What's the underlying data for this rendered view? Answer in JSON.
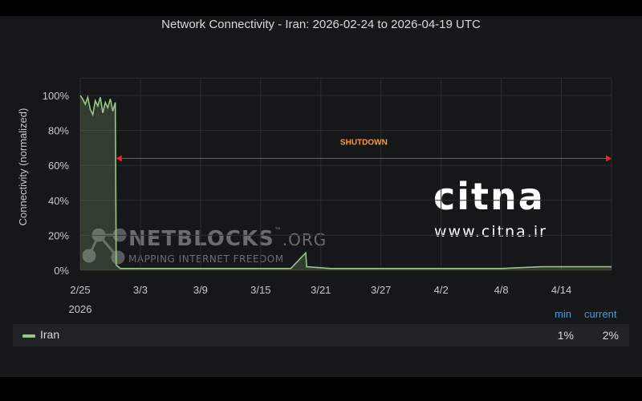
{
  "chart_data": {
    "type": "area",
    "title": "Network Connectivity - Iran: 2026-02-24 to 2026-04-19 UTC",
    "ylabel": "Connectivity (normalized)",
    "xlabel": "",
    "ylim": [
      0,
      110
    ],
    "y_ticks": [
      0,
      20,
      40,
      60,
      80,
      100
    ],
    "y_tick_labels": [
      "0%",
      "20%",
      "40%",
      "60%",
      "80%",
      "100%"
    ],
    "x_tick_labels": [
      {
        "date": "2026-02-25",
        "label": "2/25",
        "sublabel": "2026"
      },
      {
        "date": "2026-03-03",
        "label": "3/3",
        "sublabel": ""
      },
      {
        "date": "2026-03-09",
        "label": "3/9",
        "sublabel": ""
      },
      {
        "date": "2026-03-15",
        "label": "3/15",
        "sublabel": ""
      },
      {
        "date": "2026-03-21",
        "label": "3/21",
        "sublabel": ""
      },
      {
        "date": "2026-03-27",
        "label": "3/27",
        "sublabel": ""
      },
      {
        "date": "2026-04-02",
        "label": "4/2",
        "sublabel": ""
      },
      {
        "date": "2026-04-08",
        "label": "4/8",
        "sublabel": ""
      },
      {
        "date": "2026-04-14",
        "label": "4/14",
        "sublabel": ""
      }
    ],
    "grid": true,
    "series": [
      {
        "name": "Iran",
        "color": "#9ac48a",
        "points": [
          [
            "2026-02-25T00:00",
            100
          ],
          [
            "2026-02-25T06:00",
            98
          ],
          [
            "2026-02-25T12:00",
            95
          ],
          [
            "2026-02-25T18:00",
            99
          ],
          [
            "2026-02-26T00:00",
            92
          ],
          [
            "2026-02-26T06:00",
            89
          ],
          [
            "2026-02-26T12:00",
            97
          ],
          [
            "2026-02-26T18:00",
            94
          ],
          [
            "2026-02-27T00:00",
            99
          ],
          [
            "2026-02-27T06:00",
            90
          ],
          [
            "2026-02-27T12:00",
            96
          ],
          [
            "2026-02-27T18:00",
            93
          ],
          [
            "2026-02-28T00:00",
            98
          ],
          [
            "2026-02-28T06:00",
            91
          ],
          [
            "2026-02-28T12:00",
            96
          ],
          [
            "2026-02-28T14:00",
            3
          ],
          [
            "2026-03-01T00:00",
            1
          ],
          [
            "2026-03-05T00:00",
            1
          ],
          [
            "2026-03-10T00:00",
            1
          ],
          [
            "2026-03-15T00:00",
            1
          ],
          [
            "2026-03-18T00:00",
            1
          ],
          [
            "2026-03-19T12:00",
            10
          ],
          [
            "2026-03-19T14:00",
            2
          ],
          [
            "2026-03-22T00:00",
            1
          ],
          [
            "2026-03-27T00:00",
            1
          ],
          [
            "2026-04-02T00:00",
            1
          ],
          [
            "2026-04-08T00:00",
            1
          ],
          [
            "2026-04-12T00:00",
            2
          ],
          [
            "2026-04-16T00:00",
            2
          ],
          [
            "2026-04-19T00:00",
            2
          ]
        ]
      }
    ],
    "annotation": {
      "label": "SHUTDOWN",
      "from": "2026-02-28T14:00",
      "to": "2026-04-19T00:00",
      "color": "#ff1f1f",
      "label_color": "#ff9830"
    },
    "legend": {
      "placement": "bottom",
      "headers": [
        "min",
        "current"
      ],
      "rows": [
        {
          "name": "Iran",
          "min": "1%",
          "current": "2%"
        }
      ]
    }
  },
  "watermarks": {
    "netblocks_name": "NETBLOCKS",
    "netblocks_tld": ".ORG",
    "netblocks_tm": "™",
    "netblocks_tagline": "MAPPING INTERNET FREEDOM",
    "citna_logo": "CiTNA",
    "citna_url": "www.citna.ir"
  }
}
